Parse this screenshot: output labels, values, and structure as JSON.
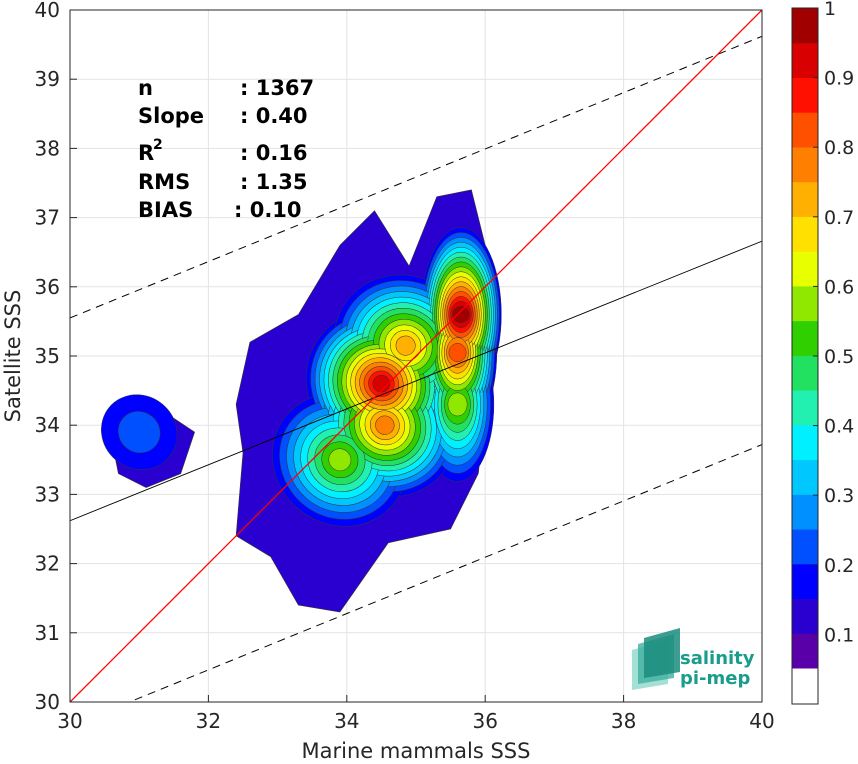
{
  "chart_data": {
    "type": "heatmap",
    "title": "",
    "xlabel": "Marine mammals SSS",
    "ylabel": "Satellite SSS",
    "xlim": [
      30,
      40
    ],
    "ylim": [
      30,
      40
    ],
    "x_ticks": [
      "30",
      "32",
      "34",
      "36",
      "38",
      "40"
    ],
    "y_ticks": [
      "30",
      "31",
      "32",
      "33",
      "34",
      "35",
      "36",
      "37",
      "38",
      "39",
      "40"
    ],
    "grid": true,
    "stats": [
      {
        "label": "n",
        "value": ": 1367"
      },
      {
        "label": "Slope",
        "value": ": 0.40"
      },
      {
        "label": "R",
        "sup": "2",
        "value": ": 0.16"
      },
      {
        "label": "RMS",
        "value": ": 1.35"
      },
      {
        "label": "BIAS",
        "value": ": 0.10"
      }
    ],
    "lines": {
      "identity": {
        "color": "#ff0000",
        "x": [
          30,
          40
        ],
        "y": [
          30,
          40
        ]
      },
      "regression": {
        "color": "#000000",
        "x": [
          30,
          40
        ],
        "y": [
          32.62,
          36.66
        ]
      },
      "upper_bound_dashed": {
        "color": "#000000",
        "x": [
          30,
          40
        ],
        "y": [
          35.55,
          39.62
        ]
      },
      "lower_bound_dashed": {
        "color": "#000000",
        "x": [
          30,
          40
        ],
        "y": [
          29.65,
          33.72
        ]
      }
    },
    "density_hotspots": [
      {
        "x": 34.5,
        "y": 34.6,
        "peak": 0.95
      },
      {
        "x": 35.65,
        "y": 35.6,
        "peak": 1.0
      },
      {
        "x": 35.6,
        "y": 35.05,
        "peak": 0.85
      },
      {
        "x": 35.6,
        "y": 34.3,
        "peak": 0.6
      },
      {
        "x": 34.55,
        "y": 34.0,
        "peak": 0.8
      },
      {
        "x": 33.9,
        "y": 33.5,
        "peak": 0.6
      },
      {
        "x": 34.85,
        "y": 35.15,
        "peak": 0.75
      },
      {
        "x": 31.0,
        "y": 33.9,
        "peak": 0.25
      }
    ],
    "colorbar": {
      "ticks": [
        "0.1",
        "0.2",
        "0.3",
        "0.4",
        "0.5",
        "0.6",
        "0.7",
        "0.8",
        "0.9",
        "1"
      ],
      "range": [
        0,
        1
      ],
      "colors": [
        "#ffffff",
        "#5a00a8",
        "#2a00d0",
        "#0000ff",
        "#0050ff",
        "#0090ff",
        "#00c8ff",
        "#00f0ff",
        "#22f0b0",
        "#22e060",
        "#30d000",
        "#90e800",
        "#e8ff00",
        "#ffe000",
        "#ffb000",
        "#ff8000",
        "#ff5000",
        "#ff1000",
        "#d80000",
        "#a00000"
      ]
    },
    "logo": {
      "line1": "salinity",
      "line2": "pi-mep"
    }
  }
}
